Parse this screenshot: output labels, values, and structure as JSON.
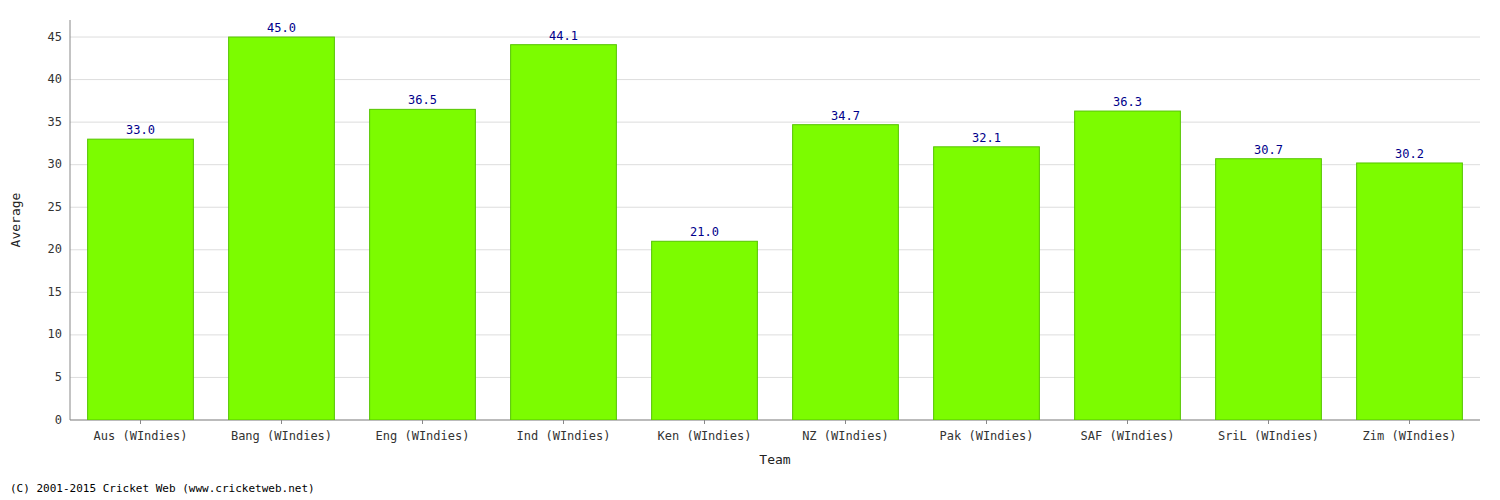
{
  "chart_data": {
    "type": "bar",
    "xlabel": "Team",
    "ylabel": "Average",
    "categories": [
      "Aus (WIndies)",
      "Bang (WIndies)",
      "Eng (WIndies)",
      "Ind (WIndies)",
      "Ken (WIndies)",
      "NZ (WIndies)",
      "Pak (WIndies)",
      "SAF (WIndies)",
      "SriL (WIndies)",
      "Zim (WIndies)"
    ],
    "values": [
      33.0,
      45.0,
      36.5,
      44.1,
      21.0,
      34.7,
      32.1,
      36.3,
      30.7,
      30.2
    ],
    "value_labels": [
      "33.0",
      "45.0",
      "36.5",
      "44.1",
      "21.0",
      "34.7",
      "32.1",
      "36.3",
      "30.7",
      "30.2"
    ],
    "data_labels": true,
    "color": "#7CFC00",
    "ylim": [
      0,
      47
    ],
    "yticks": [
      0,
      5,
      10,
      15,
      20,
      25,
      30,
      35,
      40,
      45
    ],
    "grid": true,
    "annotations": [
      "(C) 2001-2015 Cricket Web (www.cricketweb.net)"
    ]
  }
}
